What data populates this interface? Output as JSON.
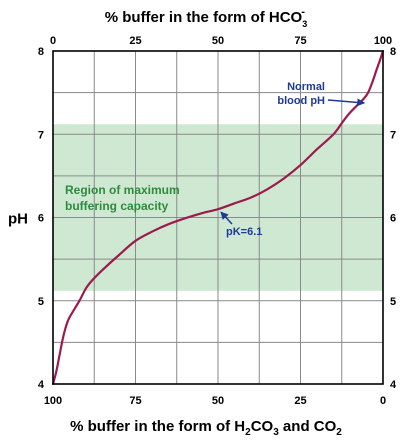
{
  "chart_data": {
    "type": "line",
    "title_top": "% buffer in the form of HCO",
    "title_top_sub": "3",
    "title_top_sup": "-",
    "xlabel_bottom_parts": [
      "% buffer in the form of H",
      "2",
      "CO",
      "3",
      " and CO",
      "2"
    ],
    "ylabel": "pH",
    "x_top_ticks": [
      "0",
      "25",
      "50",
      "75",
      "100"
    ],
    "x_bottom_ticks": [
      "100",
      "75",
      "50",
      "25",
      "0"
    ],
    "y_ticks": [
      "4",
      "5",
      "6",
      "7",
      "8"
    ],
    "xlim": [
      0,
      100
    ],
    "ylim": [
      4,
      8
    ],
    "grid": true,
    "region": {
      "label_lines": [
        "Region of maximum",
        "buffering capacity"
      ],
      "ph_range": [
        5.12,
        7.12
      ]
    },
    "annotations": [
      {
        "lines": [
          "Normal",
          "blood pH"
        ],
        "point": {
          "x": 95.5,
          "y": 7.4
        }
      },
      {
        "lines": [
          "pK=6.1"
        ],
        "point": {
          "x": 50,
          "y": 6.1
        }
      }
    ],
    "series": [
      {
        "x": [
          0,
          1,
          2,
          3,
          4,
          5,
          8,
          10,
          12,
          15,
          20,
          25,
          30,
          35,
          40,
          45,
          50,
          55,
          60,
          65,
          70,
          75,
          80,
          85,
          88,
          90,
          92,
          94,
          95.5,
          97,
          98,
          99,
          100
        ],
        "y": [
          4.0,
          4.15,
          4.35,
          4.55,
          4.7,
          4.8,
          5.0,
          5.15,
          5.25,
          5.37,
          5.55,
          5.72,
          5.83,
          5.92,
          5.99,
          6.05,
          6.1,
          6.17,
          6.24,
          6.34,
          6.47,
          6.63,
          6.82,
          7.0,
          7.16,
          7.26,
          7.34,
          7.42,
          7.5,
          7.65,
          7.77,
          7.88,
          8.0
        ]
      }
    ],
    "colors": {
      "curve": "#9c1a4e",
      "region": "#cfe8d2",
      "region_label": "#2e8b3e",
      "annotation": "#1f3a93",
      "grid": "#8a8a8a",
      "frame": "#000000"
    }
  }
}
